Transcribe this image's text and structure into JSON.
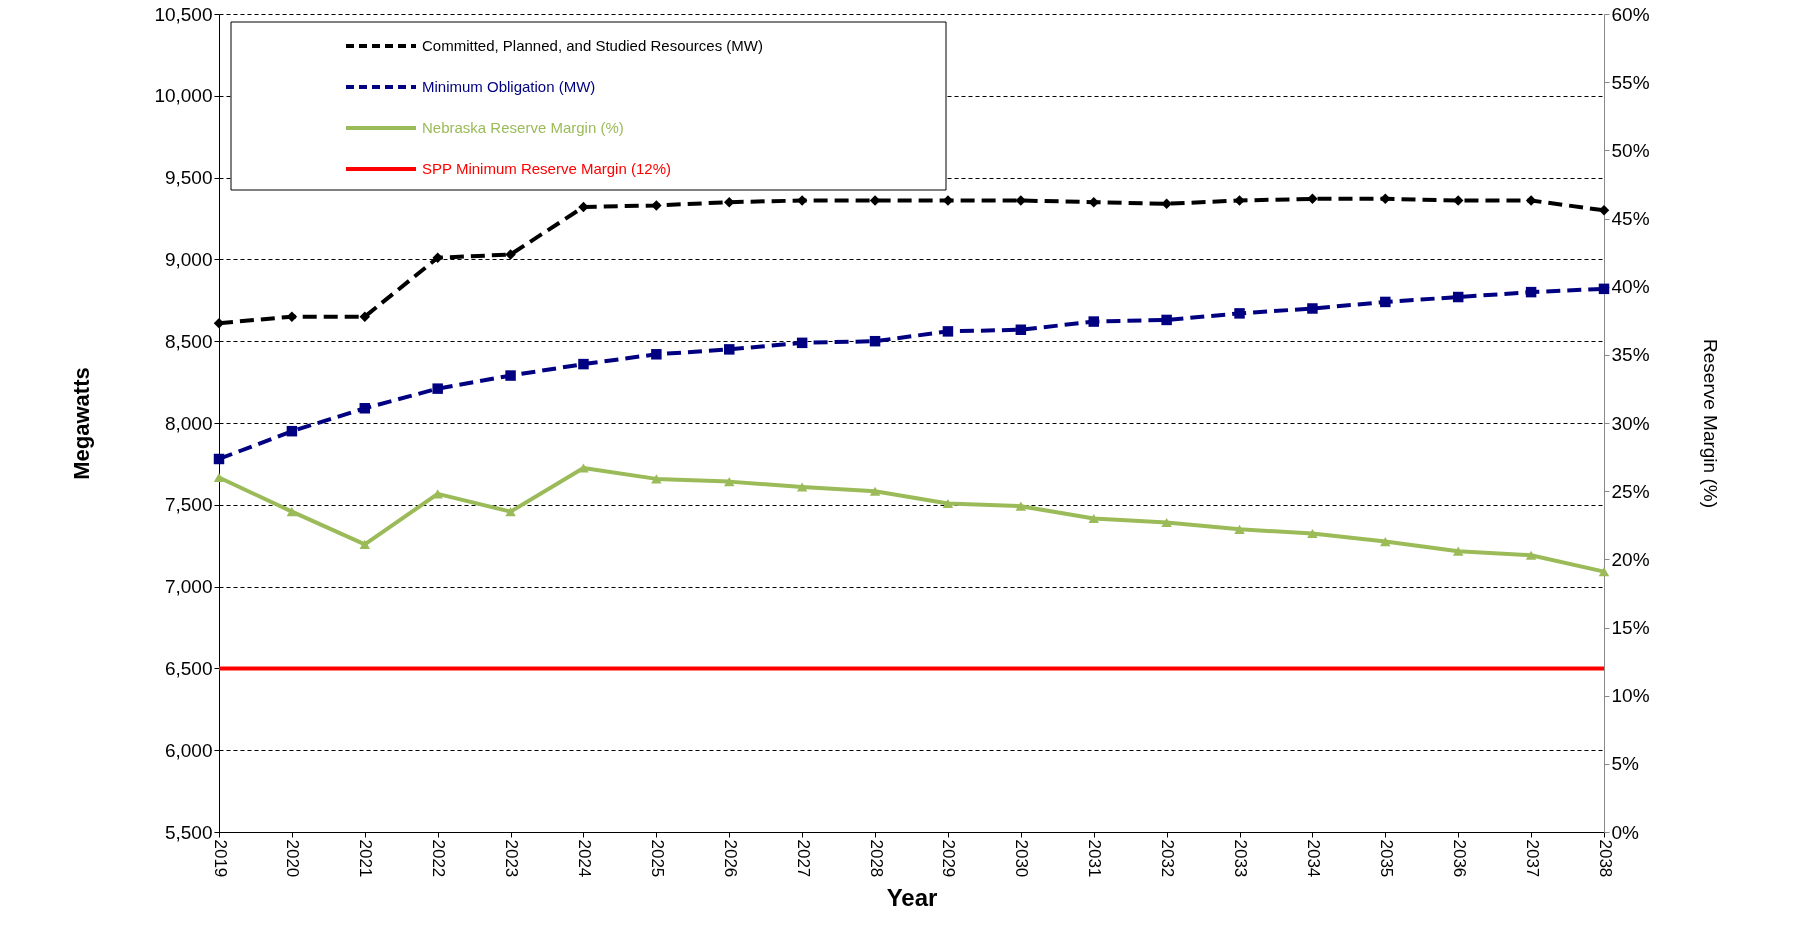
{
  "chart_data": {
    "type": "line",
    "xlabel": "Year",
    "ylabel": "Megawatts",
    "y2label": "Reserve  Margin (%)",
    "categories": [
      "2019",
      "2020",
      "2021",
      "2022",
      "2023",
      "2024",
      "2025",
      "2026",
      "2027",
      "2028",
      "2029",
      "2030",
      "2031",
      "2032",
      "2033",
      "2034",
      "2035",
      "2036",
      "2037",
      "2038"
    ],
    "series": [
      {
        "name": "Committed, Planned, and Studied Resources (MW)",
        "color": "#000000",
        "marker": "diamond",
        "line_style": "dashed",
        "values": [
          8610,
          8650,
          8650,
          9010,
          9030,
          9320,
          9330,
          9350,
          9360,
          9360,
          9360,
          9360,
          9350,
          9340,
          9360,
          9370,
          9370,
          9360,
          9360,
          9300
        ]
      },
      {
        "name": "Minimum Obligation (MW)",
        "color": "#000080",
        "marker": "square",
        "line_style": "dashed",
        "values": [
          7780,
          7950,
          8090,
          8210,
          8290,
          8360,
          8420,
          8450,
          8490,
          8500,
          8560,
          8570,
          8620,
          8630,
          8670,
          8700,
          8740,
          8770,
          8800,
          8820
        ]
      },
      {
        "name": "Nebraska Reserve Margin (%)",
        "color": "#9bbb59",
        "marker": "triangle",
        "line_style": "solid",
        "axis": "y2",
        "values": [
          26.0,
          23.5,
          21.1,
          24.8,
          23.5,
          26.7,
          25.9,
          25.7,
          25.3,
          25.0,
          24.1,
          23.9,
          23.0,
          22.7,
          22.2,
          21.9,
          21.3,
          20.6,
          20.3,
          19.1
        ]
      },
      {
        "name": "SPP Minimum Reserve Margin (12%)",
        "color": "#ff0000",
        "marker": "none",
        "line_style": "solid",
        "axis": "y2",
        "values": [
          12,
          12,
          12,
          12,
          12,
          12,
          12,
          12,
          12,
          12,
          12,
          12,
          12,
          12,
          12,
          12,
          12,
          12,
          12,
          12
        ]
      }
    ],
    "ylim": [
      5500,
      10500
    ],
    "yticks": [
      {
        "value": 5500,
        "label": "5,500"
      },
      {
        "value": 6000,
        "label": "6,000"
      },
      {
        "value": 6500,
        "label": "6,500"
      },
      {
        "value": 7000,
        "label": "7,000"
      },
      {
        "value": 7500,
        "label": "7,500"
      },
      {
        "value": 8000,
        "label": "8,000"
      },
      {
        "value": 8500,
        "label": "8,500"
      },
      {
        "value": 9000,
        "label": "9,000"
      },
      {
        "value": 9500,
        "label": "9,500"
      },
      {
        "value": 10000,
        "label": "10,000"
      },
      {
        "value": 10500,
        "label": "10,500"
      }
    ],
    "y2lim": [
      0,
      60
    ],
    "y2ticks": [
      {
        "value": 0,
        "label": "0%"
      },
      {
        "value": 5,
        "label": "5%"
      },
      {
        "value": 10,
        "label": "10%"
      },
      {
        "value": 15,
        "label": "15%"
      },
      {
        "value": 20,
        "label": "20%"
      },
      {
        "value": 25,
        "label": "25%"
      },
      {
        "value": 30,
        "label": "30%"
      },
      {
        "value": 35,
        "label": "35%"
      },
      {
        "value": 40,
        "label": "40%"
      },
      {
        "value": 45,
        "label": "45%"
      },
      {
        "value": 50,
        "label": "50%"
      },
      {
        "value": 55,
        "label": "55%"
      },
      {
        "value": 60,
        "label": "60%"
      }
    ],
    "grid": "y",
    "legend": "top left"
  }
}
